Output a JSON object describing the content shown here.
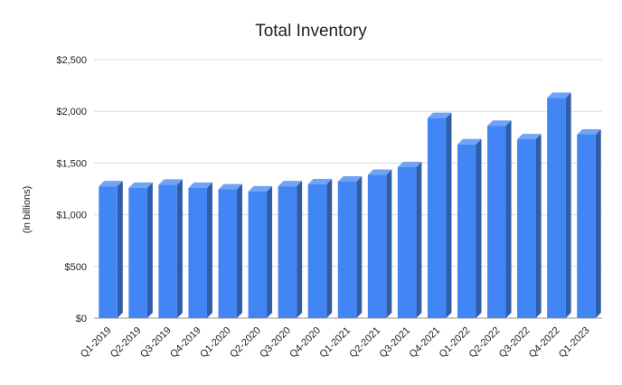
{
  "chart_data": {
    "type": "bar",
    "title": "Total Inventory",
    "xlabel": "",
    "ylabel": "(in billions)",
    "categories": [
      "Q1-2019",
      "Q2-2019",
      "Q3-2019",
      "Q4-2019",
      "Q1-2020",
      "Q2-2020",
      "Q3-2020",
      "Q4-2020",
      "Q1-2021",
      "Q2-2021",
      "Q3-2021",
      "Q4-2021",
      "Q1-2022",
      "Q2-2022",
      "Q3-2022",
      "Q4-2022",
      "Q1-2023"
    ],
    "values": [
      1275,
      1260,
      1290,
      1260,
      1245,
      1225,
      1275,
      1295,
      1320,
      1385,
      1460,
      1935,
      1680,
      1860,
      1730,
      2130,
      1775
    ],
    "ylim": [
      0,
      2500
    ],
    "yticks": [
      0,
      500,
      1000,
      1500,
      2000,
      2500
    ],
    "ytick_labels": [
      "$0",
      "$500",
      "$1,000",
      "$1,500",
      "$2,000",
      "$2,500"
    ],
    "grid": true,
    "bar_style": "3d",
    "colors": {
      "bar_front": "#4285f4",
      "bar_side": "#2f5da8",
      "bar_top": "#6fa3f7",
      "grid": "#d9d9d9",
      "axis": "#999999"
    }
  }
}
